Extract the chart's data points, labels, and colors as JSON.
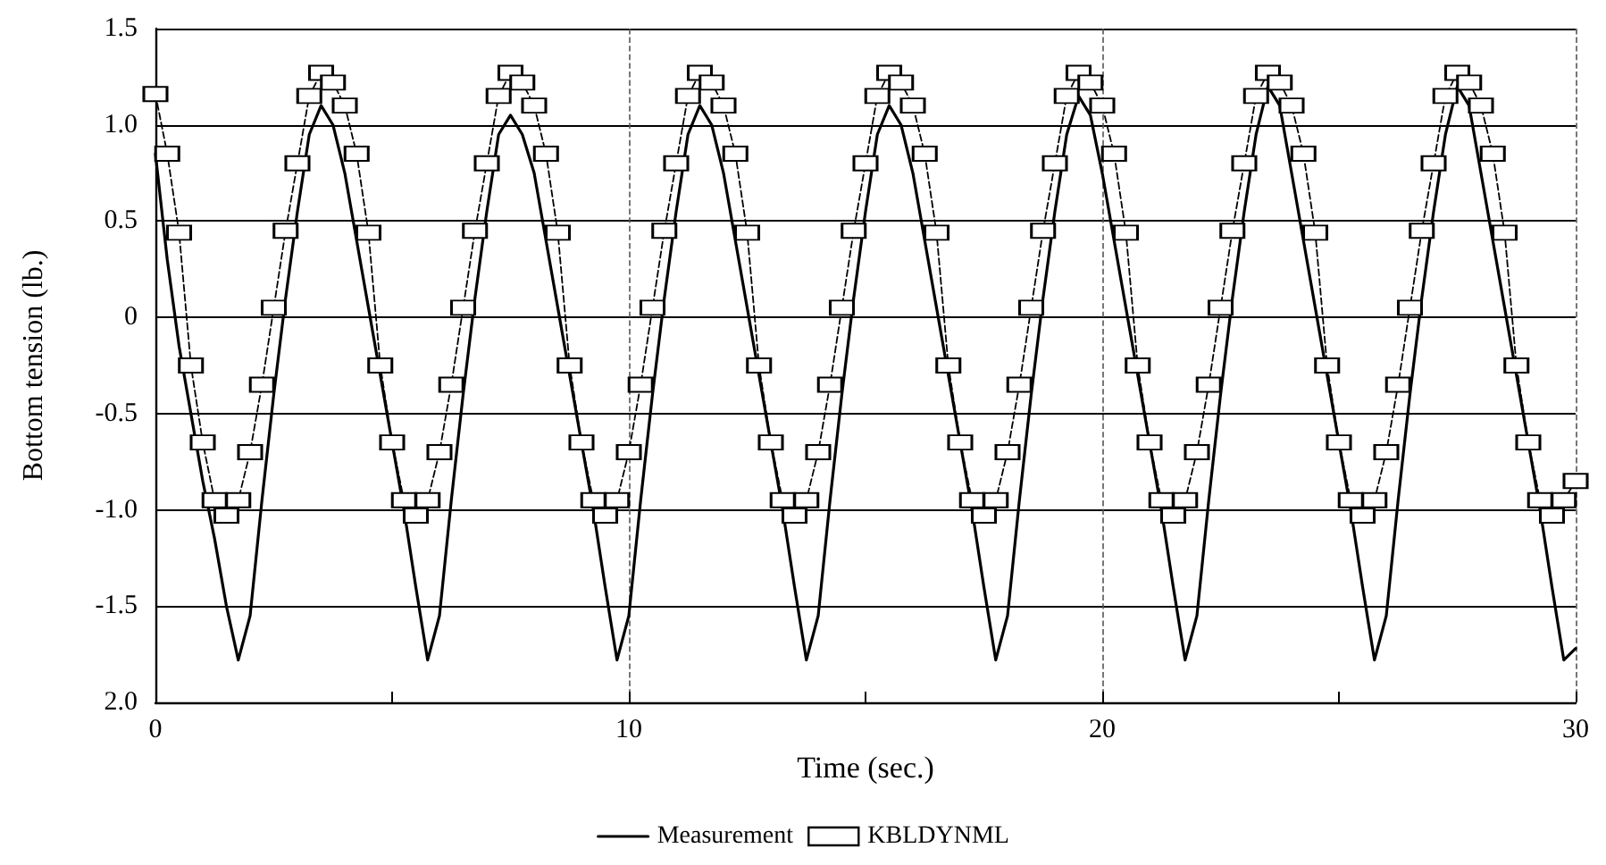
{
  "chart_data": {
    "type": "line",
    "xlabel": "Time (sec.)",
    "ylabel": "Bottom tension (lb.)",
    "x": [
      0,
      0.25,
      0.5,
      0.75,
      1,
      1.25,
      1.5,
      1.75,
      2,
      2.25,
      2.5,
      2.75,
      3,
      3.25,
      3.5,
      3.75,
      4,
      4.25,
      4.5,
      4.75,
      5,
      5.25,
      5.5,
      5.75,
      6,
      6.25,
      6.5,
      6.75,
      7,
      7.25,
      7.5,
      7.75,
      8,
      8.25,
      8.5,
      8.75,
      9,
      9.25,
      9.5,
      9.75,
      10,
      10.25,
      10.5,
      10.75,
      11,
      11.25,
      11.5,
      11.75,
      12,
      12.25,
      12.5,
      12.75,
      13,
      13.25,
      13.5,
      13.75,
      14,
      14.25,
      14.5,
      14.75,
      15,
      15.25,
      15.5,
      15.75,
      16,
      16.25,
      16.5,
      16.75,
      17,
      17.25,
      17.5,
      17.75,
      18,
      18.25,
      18.5,
      18.75,
      19,
      19.25,
      19.5,
      19.75,
      20,
      20.25,
      20.5,
      20.75,
      21,
      21.25,
      21.5,
      21.75,
      22,
      22.25,
      22.5,
      22.75,
      23,
      23.25,
      23.5,
      23.75,
      24,
      24.25,
      24.5,
      24.75,
      25,
      25.25,
      25.5,
      25.75,
      26,
      26.25,
      26.5,
      26.75,
      27,
      27.25,
      27.5,
      27.75,
      28,
      28.25,
      28.5,
      28.75,
      29,
      29.25,
      29.5,
      29.75,
      30
    ],
    "series": [
      {
        "name": "Measurement",
        "color": "#000000",
        "marker": "none",
        "line_style": "solid",
        "values": [
          0.85,
          0.3,
          -0.15,
          -0.5,
          -0.85,
          -1.15,
          -1.5,
          -1.78,
          -1.55,
          -0.95,
          -0.4,
          0.1,
          0.55,
          0.95,
          1.1,
          1.0,
          0.75,
          0.4,
          0.05,
          -0.3,
          -0.65,
          -1.0,
          -1.4,
          -1.78,
          -1.55,
          -0.95,
          -0.4,
          0.1,
          0.55,
          0.95,
          1.05,
          0.95,
          0.75,
          0.4,
          0.05,
          -0.3,
          -0.65,
          -1.0,
          -1.4,
          -1.78,
          -1.55,
          -0.95,
          -0.4,
          0.1,
          0.55,
          0.95,
          1.1,
          1.0,
          0.75,
          0.4,
          0.05,
          -0.3,
          -0.65,
          -1.0,
          -1.4,
          -1.78,
          -1.55,
          -0.95,
          -0.4,
          0.1,
          0.55,
          0.95,
          1.1,
          1.0,
          0.75,
          0.4,
          0.05,
          -0.3,
          -0.65,
          -1.0,
          -1.4,
          -1.78,
          -1.55,
          -0.95,
          -0.4,
          0.1,
          0.55,
          0.95,
          1.15,
          1.05,
          0.75,
          0.4,
          0.05,
          -0.3,
          -0.65,
          -1.0,
          -1.4,
          -1.78,
          -1.55,
          -0.95,
          -0.4,
          0.1,
          0.55,
          0.95,
          1.2,
          1.1,
          0.75,
          0.4,
          0.05,
          -0.3,
          -0.65,
          -1.0,
          -1.4,
          -1.78,
          -1.55,
          -0.95,
          -0.4,
          0.1,
          0.55,
          0.95,
          1.2,
          1.1,
          0.75,
          0.4,
          0.05,
          -0.3,
          -0.65,
          -1.0,
          -1.4,
          -1.78,
          -1.72
        ]
      },
      {
        "name": "KBLDYNML",
        "color": "#000000",
        "marker": "square",
        "line_style": "dashed",
        "values": [
          1.16,
          0.85,
          0.44,
          -0.25,
          -0.65,
          -0.95,
          -1.03,
          -0.95,
          -0.7,
          -0.35,
          0.05,
          0.45,
          0.8,
          1.15,
          1.27,
          1.22,
          1.1,
          0.85,
          0.44,
          -0.25,
          -0.65,
          -0.95,
          -1.03,
          -0.95,
          -0.7,
          -0.35,
          0.05,
          0.45,
          0.8,
          1.15,
          1.27,
          1.22,
          1.1,
          0.85,
          0.44,
          -0.25,
          -0.65,
          -0.95,
          -1.03,
          -0.95,
          -0.7,
          -0.35,
          0.05,
          0.45,
          0.8,
          1.15,
          1.27,
          1.22,
          1.1,
          0.85,
          0.44,
          -0.25,
          -0.65,
          -0.95,
          -1.03,
          -0.95,
          -0.7,
          -0.35,
          0.05,
          0.45,
          0.8,
          1.15,
          1.27,
          1.22,
          1.1,
          0.85,
          0.44,
          -0.25,
          -0.65,
          -0.95,
          -1.03,
          -0.95,
          -0.7,
          -0.35,
          0.05,
          0.45,
          0.8,
          1.15,
          1.27,
          1.22,
          1.1,
          0.85,
          0.44,
          -0.25,
          -0.65,
          -0.95,
          -1.03,
          -0.95,
          -0.7,
          -0.35,
          0.05,
          0.45,
          0.8,
          1.15,
          1.27,
          1.22,
          1.1,
          0.85,
          0.44,
          -0.25,
          -0.65,
          -0.95,
          -1.03,
          -0.95,
          -0.7,
          -0.35,
          0.05,
          0.45,
          0.8,
          1.15,
          1.27,
          1.22,
          1.1,
          0.85,
          0.44,
          -0.25,
          -0.65,
          -0.95,
          -1.03,
          -0.95,
          -0.85
        ]
      }
    ],
    "xlim": [
      0,
      30
    ],
    "xticks": [
      0,
      {
        "value": 5,
        "label": null
      },
      10,
      {
        "value": 15,
        "label": null
      },
      20,
      {
        "value": 25,
        "label": null
      },
      30
    ],
    "ylim": [
      -2,
      1.5
    ],
    "yticks": [
      {
        "value": -2,
        "label": "2.0"
      },
      {
        "value": -1.5,
        "label": "-1.5"
      },
      {
        "value": -1,
        "label": "-1.0"
      },
      {
        "value": -0.5,
        "label": "-0.5"
      },
      0,
      {
        "value": 0.5,
        "label": "0.5"
      },
      {
        "value": 1,
        "label": "1.0"
      },
      {
        "value": 1.5,
        "label": "1.5"
      }
    ],
    "grid": true,
    "legend": "bottom"
  }
}
